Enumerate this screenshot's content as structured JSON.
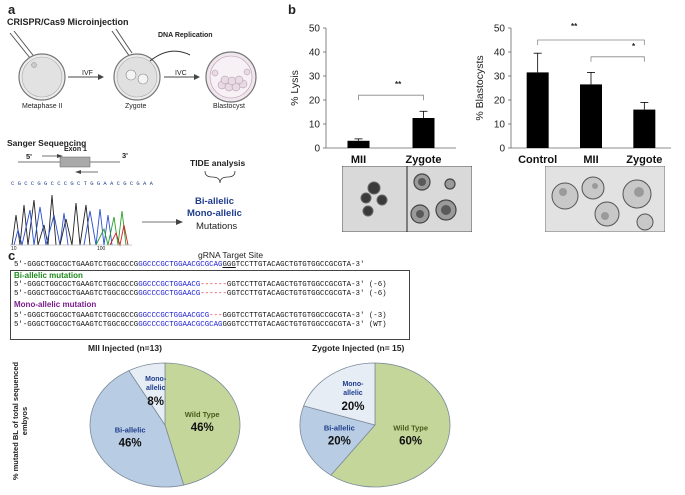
{
  "panel_a": {
    "letter": "a",
    "title": "CRISPR/Cas9 Microinjection",
    "stages": [
      "Metaphase II",
      "Zygote",
      "Blastocyst"
    ],
    "arrows": [
      "IVF",
      "IVC"
    ],
    "dna_replication": "DNA Replication",
    "sanger_title": "Sanger Sequencing",
    "five_prime": "5'",
    "three_prime": "3'",
    "exon": "Exon 1",
    "tide": "TIDE analysis",
    "bi_allelic": "Bi-allelic",
    "mono_allelic": "Mono-allelic",
    "mutations": "Mutations",
    "chrom_seq": "C G C C G G C C C G C T G G A A C G C G A A",
    "axis_ticks": [
      "10",
      "100"
    ],
    "colors": {
      "blue": "#1f3d8c",
      "trace_blue": "#2a4fd0",
      "trace_green": "#2aa02a",
      "trace_red": "#d02020",
      "trace_black": "#222222"
    }
  },
  "panel_b": {
    "letter": "b",
    "sig_lysis": "**",
    "sig_blast_1": "**",
    "sig_blast_2": "*"
  },
  "chart_data": [
    {
      "type": "bar",
      "title": "",
      "ylabel": "% Lysis",
      "xlabel": "",
      "categories": [
        "MII",
        "Zygote"
      ],
      "values": [
        3,
        12.5
      ],
      "errors": [
        0.8,
        2.8
      ],
      "ylim": [
        0,
        50
      ],
      "yticks": [
        0,
        10,
        20,
        30,
        40,
        50
      ],
      "tick_labels": [
        "0",
        "10",
        "20",
        "30",
        "40",
        "50"
      ]
    },
    {
      "type": "bar",
      "title": "",
      "ylabel": "% Blastocysts",
      "xlabel": "",
      "categories": [
        "Control",
        "MII",
        "Zygote"
      ],
      "values": [
        31.5,
        26.5,
        16
      ],
      "errors": [
        8,
        5,
        3
      ],
      "ylim": [
        0,
        50
      ],
      "yticks": [
        0,
        10,
        20,
        30,
        40,
        50
      ],
      "tick_labels": [
        "0",
        "10",
        "20",
        "30",
        "40",
        "50"
      ]
    },
    {
      "type": "pie",
      "title": "MII Injected (n=13)",
      "slices": [
        {
          "name": "Wild Type",
          "value": 46,
          "label": "46%",
          "color": "#c5d69b"
        },
        {
          "name": "Bi-allelic",
          "value": 46,
          "label": "46%",
          "color": "#b8cce4"
        },
        {
          "name": "Mono-allelic",
          "value": 8,
          "label": "8%",
          "color": "#e6edf5"
        }
      ]
    },
    {
      "type": "pie",
      "title": "Zygote Injected (n= 15)",
      "slices": [
        {
          "name": "Wild Type",
          "value": 60,
          "label": "60%",
          "color": "#c5d69b"
        },
        {
          "name": "Bi-allelic",
          "value": 20,
          "label": "20%",
          "color": "#b8cce4"
        },
        {
          "name": "Mono-allelic",
          "value": 20,
          "label": "20%",
          "color": "#e6edf5"
        }
      ]
    }
  ],
  "panel_c": {
    "letter": "c",
    "target_site": "gRNA Target Site",
    "bi_allelic_header": "Bi-allelic mutation",
    "mono_allelic_header": "Mono-allelic mutation",
    "pie_ylabel": "% mutated BL of total sequenced embyos",
    "pie_labels": {
      "wild_type": "Wild Type",
      "bi_allelic": "Bi-allelic",
      "mono_allelic": "Mono-allelic",
      "mono_line1": "Mono-",
      "mono_line2": "allelic"
    },
    "wt_seq": {
      "pre": "5'-GGGCTGGCGCTGAAGTCTGGCGCCG",
      "guide": "GGCCCGCTGGAACGCGCAG",
      "pam": "GGG",
      "post": "TCCTTGTACAGCTGTGTGGCCGCGTA-3'"
    },
    "bi_rows": [
      {
        "pre": "5'-GGGCTGGCGCTGAAGTCTGGCGCCG",
        "guide": "GGCCCGCTGGAACG",
        "del": "------",
        "post": "GGTCCTTGTACAGCTGTGTGGCCGCGTA-3'",
        "tag": "(-6)"
      },
      {
        "pre": "5'-GGGCTGGCGCTGAAGTCTGGCGCCG",
        "guide": "GGCCCGCTGGAACG",
        "del": "------",
        "post": "GGTCCTTGTACAGCTGTGTGGCCGCGTA-3'",
        "tag": "(-6)"
      }
    ],
    "mono_rows": [
      {
        "pre": "5'-GGGCTGGCGCTGAAGTCTGGCGCCG",
        "guide": "GGCCCGCTGGAACGCG",
        "del": "---",
        "post": "GGGTCCTTGTACAGCTGTGTGGCCGCGTA-3'",
        "tag": "(-3)"
      },
      {
        "pre": "5'-GGGCTGGCGCTGAAGTCTGGCGCCG",
        "guide": "GGCCCGCTGGAACGCGCAG",
        "del": "",
        "post": "GGGTCCTTGTACAGCTGTGTGGCCGCGTA-3'",
        "tag": "(WT)"
      }
    ],
    "colors": {
      "green": "#1e8a1e",
      "purple": "#7a1e8a",
      "guide_blue": "#1a1ad0",
      "deletion_red": "#e01010"
    }
  }
}
